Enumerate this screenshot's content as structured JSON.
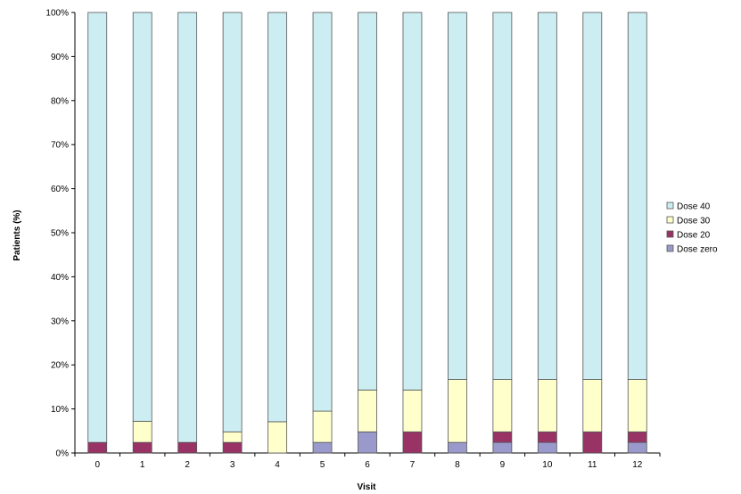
{
  "chart_data": {
    "type": "bar",
    "stacked": true,
    "percent": true,
    "xlabel": "Visit",
    "ylabel": "Patients (%)",
    "ylim": [
      0,
      100
    ],
    "yticks": [
      "0%",
      "10%",
      "20%",
      "30%",
      "40%",
      "50%",
      "60%",
      "70%",
      "80%",
      "90%",
      "100%"
    ],
    "categories": [
      "0",
      "1",
      "2",
      "3",
      "4",
      "5",
      "6",
      "7",
      "8",
      "9",
      "10",
      "11",
      "12"
    ],
    "series": [
      {
        "name": "Dose zero",
        "color": "#9999CC",
        "values": [
          0,
          0,
          0,
          0,
          0,
          2.4,
          4.8,
          0,
          2.4,
          2.4,
          2.4,
          0,
          2.4
        ]
      },
      {
        "name": "Dose 20",
        "color": "#993366",
        "values": [
          2.4,
          2.4,
          2.4,
          2.4,
          0,
          0,
          0,
          4.8,
          0,
          2.4,
          2.4,
          4.8,
          2.4
        ]
      },
      {
        "name": "Dose 30",
        "color": "#FFFFCC",
        "values": [
          0,
          4.8,
          0,
          2.4,
          7.1,
          7.1,
          9.5,
          9.5,
          14.3,
          11.9,
          11.9,
          11.9,
          11.9
        ]
      },
      {
        "name": "Dose 40",
        "color": "#CCEEF2",
        "values": [
          97.6,
          92.8,
          97.6,
          95.2,
          92.9,
          90.5,
          85.7,
          85.7,
          83.3,
          83.3,
          83.3,
          83.3,
          83.3
        ]
      }
    ],
    "legend_position": "right",
    "grid": false
  }
}
